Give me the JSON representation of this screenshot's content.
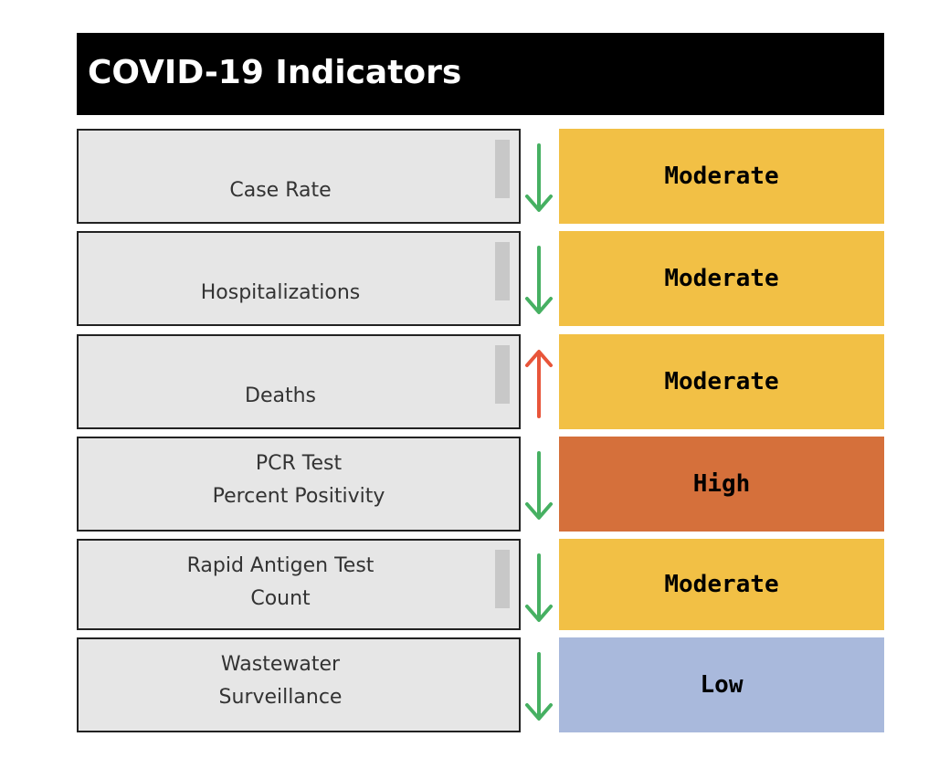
{
  "header": {
    "title": "COVID-19 Indicators"
  },
  "colors": {
    "moderate": "#f2c045",
    "high": "#d5703b",
    "low": "#a9b9dc",
    "trend_down": "#46b062",
    "trend_up": "#e8553a"
  },
  "indicators": [
    {
      "label": "Case Rate",
      "trend": "down",
      "trend_icon": "arrow-down-icon",
      "level": "Moderate"
    },
    {
      "label": "Hospitalizations",
      "trend": "down",
      "trend_icon": "arrow-down-icon",
      "level": "Moderate"
    },
    {
      "label": "Deaths",
      "trend": "up",
      "trend_icon": "arrow-up-icon",
      "level": "Moderate"
    },
    {
      "label": "PCR Test\nPercent Positivity",
      "trend": "down",
      "trend_icon": "arrow-down-icon",
      "level": "High"
    },
    {
      "label": "Rapid Antigen Test\nCount",
      "trend": "down",
      "trend_icon": "arrow-down-icon",
      "level": "Moderate"
    },
    {
      "label": "Wastewater\nSurveillance",
      "trend": "down",
      "trend_icon": "arrow-down-icon",
      "level": "Low"
    }
  ]
}
